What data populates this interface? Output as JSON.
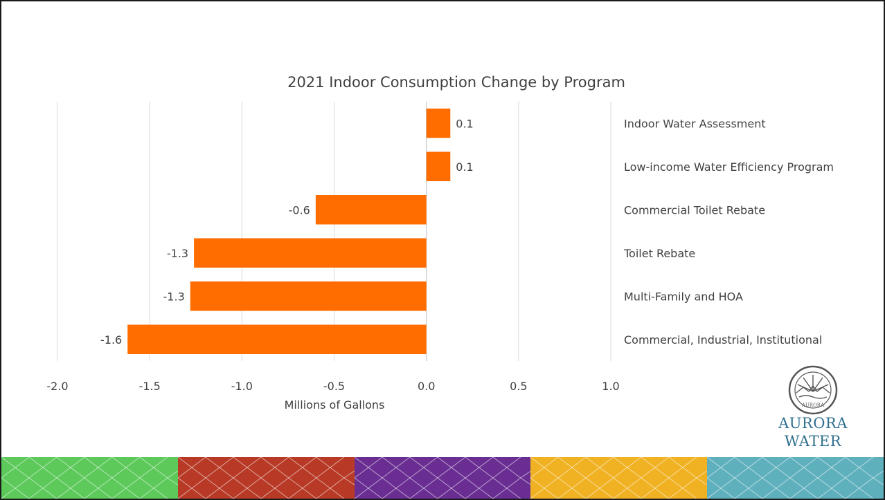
{
  "chart_data": {
    "type": "bar",
    "orientation": "horizontal",
    "title": "2021 Indoor Consumption Change by Program",
    "xlabel": "Millions of Gallons",
    "ylabel": "",
    "xlim": [
      -2.0,
      1.0
    ],
    "x_ticks": [
      "-2.0",
      "-1.5",
      "-1.0",
      "-0.5",
      "0.0",
      "0.5",
      "1.0"
    ],
    "grid": true,
    "category_label_side": "right",
    "categories": [
      "Indoor Water Assessment",
      "Low-income Water Efficiency Program",
      "Commercial Toilet Rebate",
      "Toilet Rebate",
      "Multi-Family and HOA",
      "Commercial, Industrial, Institutional"
    ],
    "values": [
      0.13,
      0.13,
      -0.6,
      -1.26,
      -1.28,
      -1.62
    ],
    "data_labels": [
      "0.1",
      "0.1",
      "-0.6",
      "-1.3",
      "-1.3",
      "-1.6"
    ],
    "bar_color": "#ff6d00"
  },
  "logo": {
    "word1": "AURORA",
    "word2": "WATER",
    "seal_text": "AURORA"
  },
  "footer_colors": [
    "#5cc95a",
    "#b83a26",
    "#6a2e93",
    "#f0b223",
    "#5fb0bd"
  ]
}
